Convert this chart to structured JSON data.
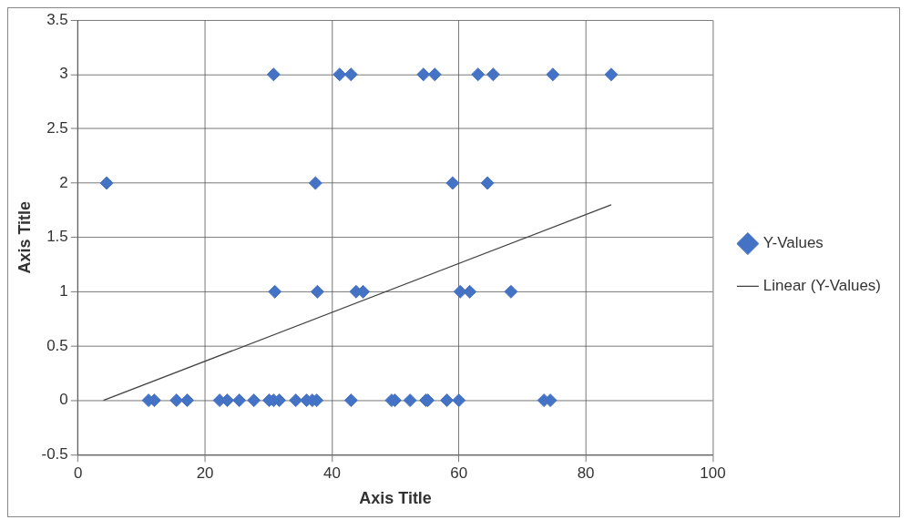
{
  "chart_data": {
    "type": "scatter",
    "xlabel": "Axis Title",
    "ylabel": "Axis Title",
    "xlim": [
      0,
      100
    ],
    "xticks": [
      0,
      20,
      40,
      60,
      80,
      100
    ],
    "ylim": [
      -0.5,
      3.5
    ],
    "yticks": [
      -0.5,
      0,
      0.5,
      1,
      1.5,
      2,
      2.5,
      3,
      3.5
    ],
    "grid": true,
    "legend": "right",
    "marker": "diamond",
    "series": [
      {
        "name": "Y-Values",
        "color": "#4472c4",
        "x": [
          11.1,
          12,
          15.5,
          17.2,
          22.3,
          23.5,
          25.4,
          27.7,
          30.1,
          30.8,
          31.7,
          34.3,
          36,
          36.9,
          37.6,
          43,
          49.4,
          49.9,
          52.3,
          54.8,
          55.1,
          58.1,
          60,
          73.4,
          74.4,
          30.8,
          41.2,
          43,
          54.4,
          56.2,
          63,
          65.4,
          74.8,
          84,
          4.5,
          37.4,
          59,
          64.5,
          31,
          37.7,
          43.8,
          44.9,
          60.2,
          61.7,
          68.2
        ],
        "values": [
          0,
          0,
          0,
          0,
          0,
          0,
          0,
          0,
          0,
          0,
          0,
          0,
          0,
          0,
          0,
          0,
          0,
          0,
          0,
          0,
          0,
          0,
          0,
          0,
          0,
          3,
          3,
          3,
          3,
          3,
          3,
          3,
          3,
          3,
          2,
          2,
          2,
          2,
          1,
          1,
          1,
          1,
          1,
          1,
          1
        ]
      },
      {
        "name": "Linear (Y-Values)",
        "color": "#404040",
        "type": "line",
        "marker": "none",
        "x": [
          4,
          84
        ],
        "values": [
          0,
          1.8
        ]
      }
    ]
  }
}
